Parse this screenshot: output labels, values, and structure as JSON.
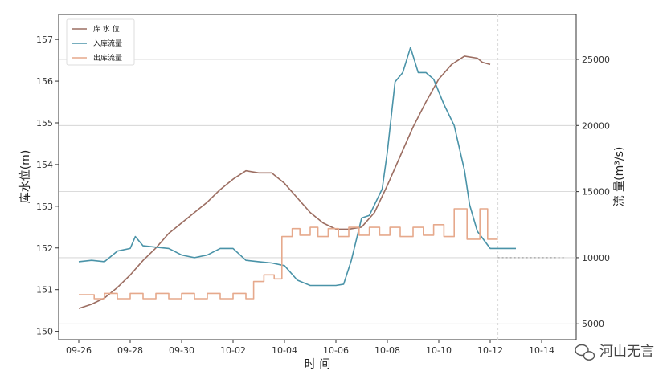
{
  "chart_data": {
    "type": "line",
    "xlabel": "时 间",
    "ylabel_left": "库水位(m)",
    "ylabel_right": "流 量(m³/s)",
    "x_tick_labels": [
      "09-26",
      "09-28",
      "09-30",
      "10-02",
      "10-04",
      "10-06",
      "10-08",
      "10-10",
      "10-12",
      "10-14"
    ],
    "x_range_days": [
      0,
      20
    ],
    "y_left_ticks": [
      150,
      151,
      152,
      153,
      154,
      155,
      156,
      157
    ],
    "y_left_range": [
      149.8,
      157.6
    ],
    "y_right_ticks": [
      5000,
      10000,
      15000,
      20000,
      25000
    ],
    "y_right_range": [
      3800,
      28400
    ],
    "grid": "horizontal",
    "legend_position": "top-left",
    "series": [
      {
        "name": "库 水 位",
        "axis": "left",
        "color": "#9c6e62",
        "style": "solid",
        "points": [
          [
            0.0,
            150.55
          ],
          [
            0.5,
            150.65
          ],
          [
            1.0,
            150.8
          ],
          [
            1.5,
            151.05
          ],
          [
            2.0,
            151.35
          ],
          [
            2.5,
            151.7
          ],
          [
            3.0,
            152.0
          ],
          [
            3.5,
            152.35
          ],
          [
            4.0,
            152.6
          ],
          [
            4.5,
            152.85
          ],
          [
            5.0,
            153.1
          ],
          [
            5.5,
            153.4
          ],
          [
            6.0,
            153.65
          ],
          [
            6.5,
            153.85
          ],
          [
            7.0,
            153.8
          ],
          [
            7.5,
            153.8
          ],
          [
            8.0,
            153.55
          ],
          [
            8.5,
            153.2
          ],
          [
            9.0,
            152.85
          ],
          [
            9.5,
            152.6
          ],
          [
            10.0,
            152.45
          ],
          [
            10.5,
            152.45
          ],
          [
            11.0,
            152.5
          ],
          [
            11.5,
            152.85
          ],
          [
            12.0,
            153.5
          ],
          [
            12.5,
            154.2
          ],
          [
            13.0,
            154.9
          ],
          [
            13.5,
            155.5
          ],
          [
            14.0,
            156.05
          ],
          [
            14.5,
            156.4
          ],
          [
            15.0,
            156.6
          ],
          [
            15.5,
            156.55
          ],
          [
            15.7,
            156.45
          ],
          [
            16.0,
            156.4
          ]
        ]
      },
      {
        "name": "入库流量",
        "axis": "right",
        "color": "#4a93a8",
        "style": "solid",
        "points": [
          [
            0.0,
            9700
          ],
          [
            0.5,
            9800
          ],
          [
            1.0,
            9700
          ],
          [
            1.5,
            10500
          ],
          [
            2.0,
            10700
          ],
          [
            2.2,
            11600
          ],
          [
            2.5,
            10900
          ],
          [
            3.0,
            10800
          ],
          [
            3.5,
            10700
          ],
          [
            4.0,
            10200
          ],
          [
            4.5,
            10000
          ],
          [
            5.0,
            10200
          ],
          [
            5.5,
            10700
          ],
          [
            6.0,
            10700
          ],
          [
            6.5,
            9800
          ],
          [
            7.0,
            9700
          ],
          [
            7.5,
            9600
          ],
          [
            8.0,
            9400
          ],
          [
            8.5,
            8300
          ],
          [
            9.0,
            7900
          ],
          [
            9.5,
            7900
          ],
          [
            10.0,
            7900
          ],
          [
            10.3,
            8000
          ],
          [
            10.6,
            9800
          ],
          [
            11.0,
            13000
          ],
          [
            11.3,
            13200
          ],
          [
            11.8,
            15200
          ],
          [
            12.0,
            18000
          ],
          [
            12.3,
            23300
          ],
          [
            12.6,
            24000
          ],
          [
            12.9,
            25900
          ],
          [
            13.2,
            24000
          ],
          [
            13.5,
            24000
          ],
          [
            13.8,
            23500
          ],
          [
            14.2,
            21600
          ],
          [
            14.6,
            20000
          ],
          [
            15.0,
            16600
          ],
          [
            15.2,
            14000
          ],
          [
            15.5,
            12000
          ],
          [
            16.0,
            10700
          ],
          [
            16.4,
            10700
          ],
          [
            17.0,
            10700
          ]
        ]
      },
      {
        "name": "出库流量",
        "axis": "right",
        "color": "#e6a98c",
        "style": "step",
        "points": [
          [
            0.0,
            7200
          ],
          [
            0.6,
            7200
          ],
          [
            0.6,
            6900
          ],
          [
            1.0,
            6900
          ],
          [
            1.0,
            7300
          ],
          [
            1.5,
            7300
          ],
          [
            1.5,
            6900
          ],
          [
            2.0,
            6900
          ],
          [
            2.0,
            7300
          ],
          [
            2.5,
            7300
          ],
          [
            2.5,
            6900
          ],
          [
            3.0,
            6900
          ],
          [
            3.0,
            7300
          ],
          [
            3.5,
            7300
          ],
          [
            3.5,
            6900
          ],
          [
            4.0,
            6900
          ],
          [
            4.0,
            7300
          ],
          [
            4.5,
            7300
          ],
          [
            4.5,
            6900
          ],
          [
            5.0,
            6900
          ],
          [
            5.0,
            7300
          ],
          [
            5.5,
            7300
          ],
          [
            5.5,
            6900
          ],
          [
            6.0,
            6900
          ],
          [
            6.0,
            7300
          ],
          [
            6.5,
            7300
          ],
          [
            6.5,
            6900
          ],
          [
            6.8,
            6900
          ],
          [
            6.8,
            8200
          ],
          [
            7.2,
            8200
          ],
          [
            7.2,
            8700
          ],
          [
            7.6,
            8700
          ],
          [
            7.6,
            8400
          ],
          [
            7.9,
            8400
          ],
          [
            7.9,
            11600
          ],
          [
            8.3,
            11600
          ],
          [
            8.3,
            12200
          ],
          [
            8.6,
            12200
          ],
          [
            8.6,
            11700
          ],
          [
            9.0,
            11700
          ],
          [
            9.0,
            12300
          ],
          [
            9.3,
            12300
          ],
          [
            9.3,
            11600
          ],
          [
            9.7,
            11600
          ],
          [
            9.7,
            12200
          ],
          [
            10.1,
            12200
          ],
          [
            10.1,
            11600
          ],
          [
            10.5,
            11600
          ],
          [
            10.5,
            12300
          ],
          [
            10.9,
            12300
          ],
          [
            10.9,
            11700
          ],
          [
            11.3,
            11700
          ],
          [
            11.3,
            12300
          ],
          [
            11.7,
            12300
          ],
          [
            11.7,
            11700
          ],
          [
            12.1,
            11700
          ],
          [
            12.1,
            12300
          ],
          [
            12.5,
            12300
          ],
          [
            12.5,
            11600
          ],
          [
            13.0,
            11600
          ],
          [
            13.0,
            12300
          ],
          [
            13.4,
            12300
          ],
          [
            13.4,
            11700
          ],
          [
            13.8,
            11700
          ],
          [
            13.8,
            12500
          ],
          [
            14.2,
            12500
          ],
          [
            14.2,
            11600
          ],
          [
            14.6,
            11600
          ],
          [
            14.6,
            13700
          ],
          [
            15.1,
            13700
          ],
          [
            15.1,
            11400
          ],
          [
            15.6,
            11400
          ],
          [
            15.6,
            13700
          ],
          [
            15.9,
            13700
          ],
          [
            15.9,
            11400
          ],
          [
            16.3,
            11400
          ]
        ]
      },
      {
        "name": "",
        "axis": "right",
        "color": "#888888",
        "style": "dotted",
        "points": [
          [
            16.3,
            10000
          ],
          [
            18.9,
            10000
          ]
        ]
      }
    ]
  },
  "watermark": {
    "icon": "wechat-icon",
    "text": "河山无言"
  }
}
